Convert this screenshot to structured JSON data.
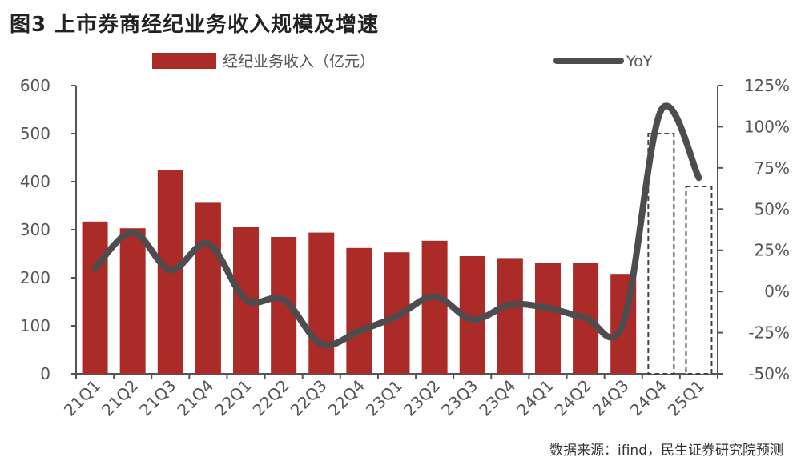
{
  "title": "图3  上市券商经纪业务收入规模及增速",
  "source": "数据来源：ifind，民生证券研究院预测",
  "chart_data": {
    "type": "bar+line",
    "categories": [
      "21Q1",
      "21Q2",
      "21Q3",
      "21Q4",
      "22Q1",
      "22Q2",
      "22Q3",
      "22Q4",
      "23Q1",
      "23Q2",
      "23Q3",
      "23Q4",
      "24Q1",
      "24Q2",
      "24Q3",
      "24Q4",
      "25Q1"
    ],
    "series": [
      {
        "name": "经纪业务收入（亿元）",
        "type": "bar",
        "axis": "left",
        "color": "#ab2b28",
        "values": [
          317,
          303,
          424,
          356,
          305,
          285,
          294,
          262,
          253,
          277,
          245,
          241,
          230,
          231,
          208,
          500,
          390
        ],
        "forecast_from_index": 15
      },
      {
        "name": "YoY",
        "type": "line",
        "axis": "right",
        "color": "#4d4d4f",
        "values": [
          14,
          36,
          13,
          29,
          -5,
          -5,
          -32,
          -24,
          -15,
          -3,
          -17,
          -8,
          -10,
          -16,
          -19,
          110,
          69
        ]
      }
    ],
    "left_axis": {
      "min": 0,
      "max": 600,
      "ticks": [
        "0",
        "100",
        "200",
        "300",
        "400",
        "500",
        "600"
      ]
    },
    "right_axis": {
      "min": -50,
      "max": 125,
      "ticks": [
        "-50%",
        "-25%",
        "0%",
        "25%",
        "50%",
        "75%",
        "100%",
        "125%"
      ]
    },
    "legend_position": "top",
    "grid": false
  }
}
